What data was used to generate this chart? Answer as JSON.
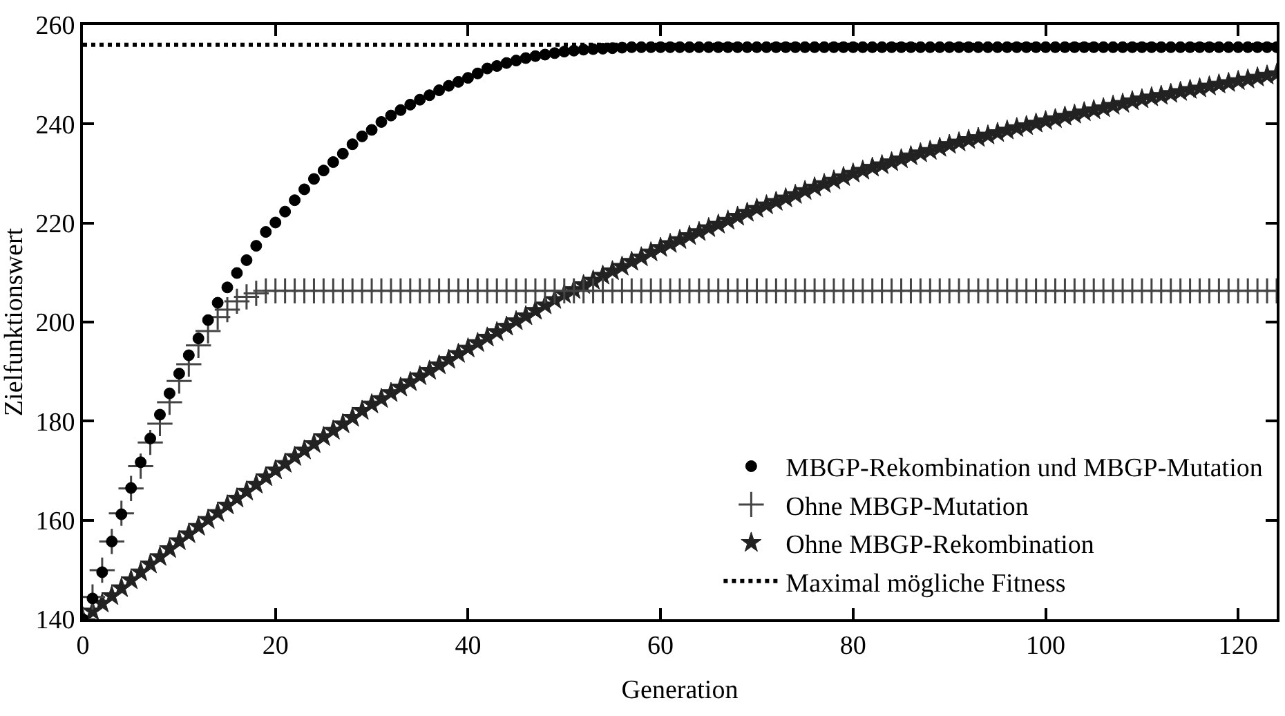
{
  "chart_data": {
    "type": "scatter",
    "xlabel": "Generation",
    "ylabel": "Zielfunktionswert",
    "xlim": [
      0,
      124
    ],
    "xticks": [
      0,
      20,
      40,
      60,
      80,
      100,
      120
    ],
    "ylim": [
      140,
      260
    ],
    "yticks": [
      140,
      160,
      180,
      200,
      220,
      240,
      260
    ],
    "legend": "bottom right",
    "x": [
      0,
      1,
      2,
      3,
      4,
      5,
      6,
      7,
      8,
      9,
      10,
      11,
      12,
      13,
      14,
      15,
      16,
      17,
      18,
      19,
      20,
      21,
      22,
      23,
      24,
      25,
      26,
      27,
      28,
      29,
      30,
      31,
      32,
      33,
      34,
      35,
      36,
      37,
      38,
      39,
      40,
      41,
      42,
      43,
      44,
      45,
      46,
      47,
      48,
      49,
      50,
      51,
      52,
      53,
      54,
      55,
      56,
      57,
      58,
      59,
      60,
      61,
      62,
      63,
      64,
      65,
      66,
      67,
      68,
      69,
      70,
      71,
      72,
      73,
      74,
      75,
      76,
      77,
      78,
      79,
      80,
      81,
      82,
      83,
      84,
      85,
      86,
      87,
      88,
      89,
      90,
      91,
      92,
      93,
      94,
      95,
      96,
      97,
      98,
      99,
      100,
      101,
      102,
      103,
      104,
      105,
      106,
      107,
      108,
      109,
      110,
      111,
      112,
      113,
      114,
      115,
      116,
      117,
      118,
      119,
      120,
      121,
      122,
      123,
      124
    ],
    "series": [
      {
        "name": "MBGP-Rekombination und MBGP-Mutation",
        "marker": "circle",
        "color": "#000000",
        "values": [
          140,
          144.2,
          149.5,
          155.7,
          161.2,
          166.5,
          171.7,
          176.5,
          181.3,
          185.6,
          189.6,
          193.3,
          196.7,
          200.4,
          203.9,
          207.0,
          209.9,
          212.5,
          215.4,
          218.2,
          220.1,
          222.3,
          224.6,
          226.8,
          228.9,
          230.6,
          232.3,
          234.0,
          235.9,
          237.5,
          238.8,
          240.4,
          241.7,
          242.8,
          243.9,
          244.9,
          245.8,
          246.8,
          247.7,
          248.5,
          249.3,
          250.2,
          251.2,
          251.7,
          252.3,
          252.8,
          253.3,
          253.7,
          254.0,
          254.3,
          254.6,
          254.8,
          255.0,
          255.1,
          255.2,
          255.3,
          255.4,
          255.5,
          255.5,
          255.5,
          255.5,
          255.5,
          255.5,
          255.5,
          255.5,
          255.5,
          255.5,
          255.5,
          255.5,
          255.5,
          255.5,
          255.5,
          255.5,
          255.5,
          255.5,
          255.5,
          255.5,
          255.5,
          255.5,
          255.5,
          255.5,
          255.5,
          255.5,
          255.5,
          255.5,
          255.5,
          255.5,
          255.5,
          255.5,
          255.5,
          255.5,
          255.5,
          255.5,
          255.5,
          255.5,
          255.5,
          255.5,
          255.5,
          255.5,
          255.5,
          255.5,
          255.5,
          255.5,
          255.5,
          255.5,
          255.5,
          255.5,
          255.5,
          255.5,
          255.5,
          255.5,
          255.5,
          255.5,
          255.5,
          255.5,
          255.5,
          255.5,
          255.5,
          255.5,
          255.5,
          255.5,
          255.5,
          255.5,
          255.5,
          255.5
        ]
      },
      {
        "name": "Ohne MBGP-Mutation",
        "marker": "cross",
        "color": "#444444",
        "values": [
          140,
          144.5,
          149.9,
          155.7,
          161.4,
          166.4,
          170.9,
          175.7,
          179.5,
          183.8,
          188.1,
          191.5,
          195.3,
          198.2,
          201.0,
          202.5,
          204.2,
          205.1,
          205.8,
          206.3,
          206.3,
          206.3,
          206.3,
          206.3,
          206.3,
          206.3,
          206.3,
          206.3,
          206.3,
          206.3,
          206.3,
          206.3,
          206.3,
          206.3,
          206.3,
          206.3,
          206.3,
          206.3,
          206.3,
          206.3,
          206.3,
          206.3,
          206.3,
          206.3,
          206.3,
          206.3,
          206.3,
          206.3,
          206.3,
          206.3,
          206.3,
          206.3,
          206.3,
          206.3,
          206.3,
          206.3,
          206.3,
          206.3,
          206.3,
          206.3,
          206.3,
          206.3,
          206.3,
          206.3,
          206.3,
          206.3,
          206.3,
          206.3,
          206.3,
          206.3,
          206.3,
          206.3,
          206.3,
          206.3,
          206.3,
          206.3,
          206.3,
          206.3,
          206.3,
          206.3,
          206.3,
          206.3,
          206.3,
          206.3,
          206.3,
          206.3,
          206.3,
          206.3,
          206.3,
          206.3,
          206.3,
          206.3,
          206.3,
          206.3,
          206.3,
          206.3,
          206.3,
          206.3,
          206.3,
          206.3,
          206.3,
          206.3,
          206.3,
          206.3,
          206.3,
          206.3,
          206.3,
          206.3,
          206.3,
          206.3,
          206.3,
          206.3,
          206.3,
          206.3,
          206.3,
          206.3,
          206.3,
          206.3,
          206.3,
          206.3,
          206.3,
          206.3,
          206.3,
          206.3,
          206.3
        ]
      },
      {
        "name": "Ohne MBGP-Rekombination",
        "marker": "star",
        "color": "#222222",
        "values": [
          140,
          141.6,
          143.2,
          144.7,
          146.3,
          147.9,
          149.5,
          151.1,
          152.6,
          154.2,
          155.8,
          157.2,
          158.7,
          160.1,
          161.5,
          163.0,
          164.4,
          165.8,
          167.2,
          168.7,
          170.1,
          171.4,
          172.8,
          174.1,
          175.4,
          176.8,
          178.1,
          179.4,
          180.7,
          182.1,
          183.4,
          184.5,
          185.7,
          186.8,
          187.9,
          189.1,
          190.2,
          191.3,
          192.4,
          193.6,
          194.7,
          195.8,
          196.9,
          198.0,
          199.1,
          200.2,
          201.2,
          202.3,
          203.4,
          204.5,
          205.6,
          206.5,
          207.5,
          208.4,
          209.4,
          210.3,
          211.2,
          212.2,
          213.1,
          214.1,
          215.0,
          215.8,
          216.6,
          217.4,
          218.2,
          219.0,
          219.7,
          220.5,
          221.3,
          222.1,
          222.9,
          223.6,
          224.3,
          225.0,
          225.7,
          226.5,
          227.2,
          227.9,
          228.6,
          229.3,
          230.0,
          230.6,
          231.2,
          231.7,
          232.3,
          232.9,
          233.5,
          234.1,
          234.6,
          235.2,
          235.8,
          236.3,
          236.8,
          237.2,
          237.7,
          238.2,
          238.7,
          239.2,
          239.6,
          240.1,
          240.6,
          241.0,
          241.5,
          241.9,
          242.4,
          242.8,
          243.2,
          243.7,
          244.1,
          244.6,
          245.0,
          245.4,
          245.7,
          246.1,
          246.5,
          246.9,
          247.2,
          247.6,
          248.0,
          248.3,
          248.7,
          249.0,
          249.4,
          249.8,
          250.1
        ]
      },
      {
        "name": "Maximal mögliche Fitness",
        "type": "line",
        "line_style": "dotted",
        "color": "#000000",
        "x": [
          0,
          124
        ],
        "values": [
          256,
          256
        ]
      }
    ]
  }
}
